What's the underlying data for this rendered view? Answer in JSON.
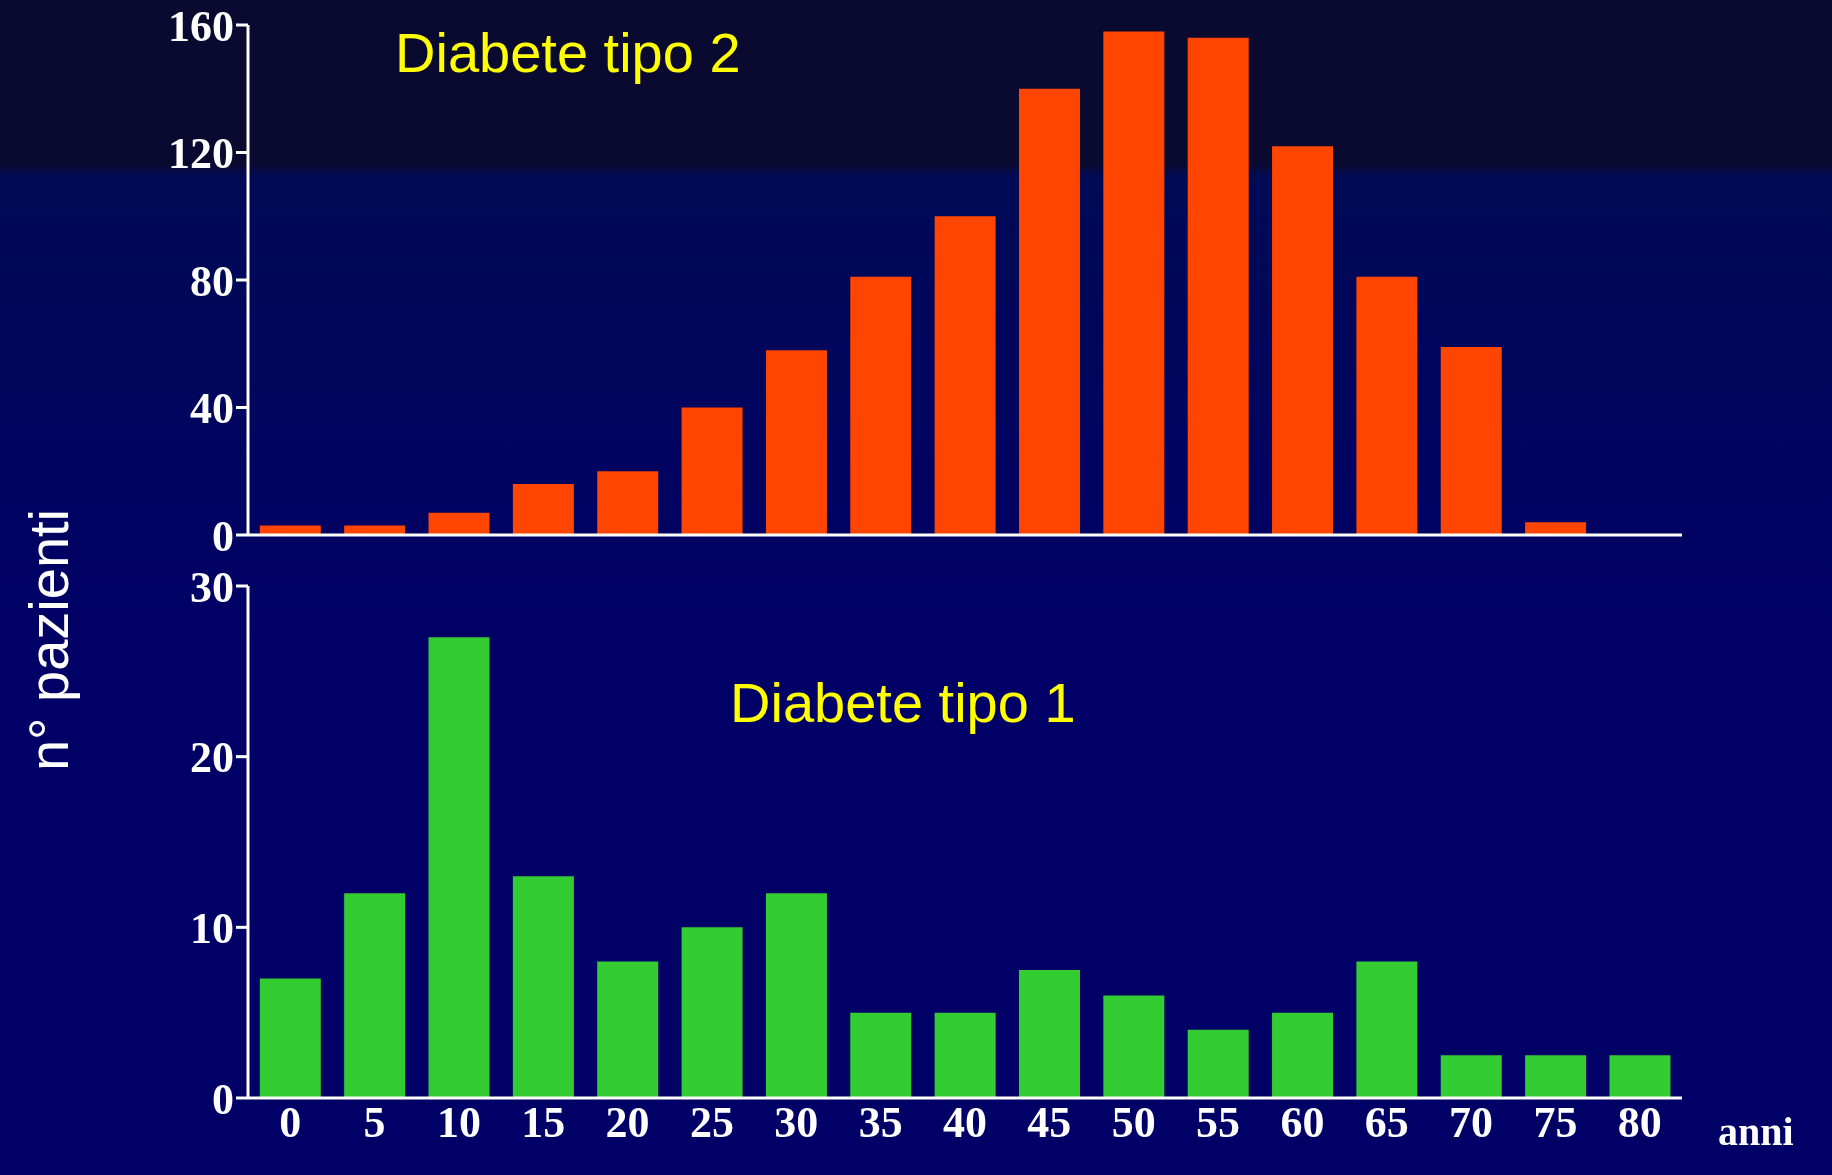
{
  "chart_data": [
    {
      "type": "bar",
      "ylabel": "n° pazienti",
      "annotations": [
        "Diabete tipo 2"
      ],
      "categories": [
        "0",
        "5",
        "10",
        "15",
        "20",
        "25",
        "30",
        "35",
        "40",
        "45",
        "50",
        "55",
        "60",
        "65",
        "70",
        "75",
        "80"
      ],
      "values": [
        3,
        3,
        7,
        16,
        20,
        40,
        58,
        81,
        100,
        140,
        158,
        156,
        122,
        81,
        59,
        4,
        null
      ],
      "color": "#ff4500",
      "ylim": [
        0,
        160
      ],
      "yticks": [
        0,
        40,
        80,
        120,
        160
      ],
      "tick_labels": "y"
    },
    {
      "type": "bar",
      "xlabel": "anni",
      "annotations": [
        "Diabete tipo 1"
      ],
      "categories": [
        "0",
        "5",
        "10",
        "15",
        "20",
        "25",
        "30",
        "35",
        "40",
        "45",
        "50",
        "55",
        "60",
        "65",
        "70",
        "75",
        "80"
      ],
      "values": [
        7,
        12,
        27,
        13,
        8,
        10,
        12,
        5,
        5,
        7.5,
        6,
        4,
        5,
        8,
        2.5,
        2.5,
        2.5
      ],
      "color": "#33cc33",
      "ylim": [
        0,
        30
      ],
      "yticks": [
        0,
        10,
        20,
        30
      ]
    }
  ]
}
